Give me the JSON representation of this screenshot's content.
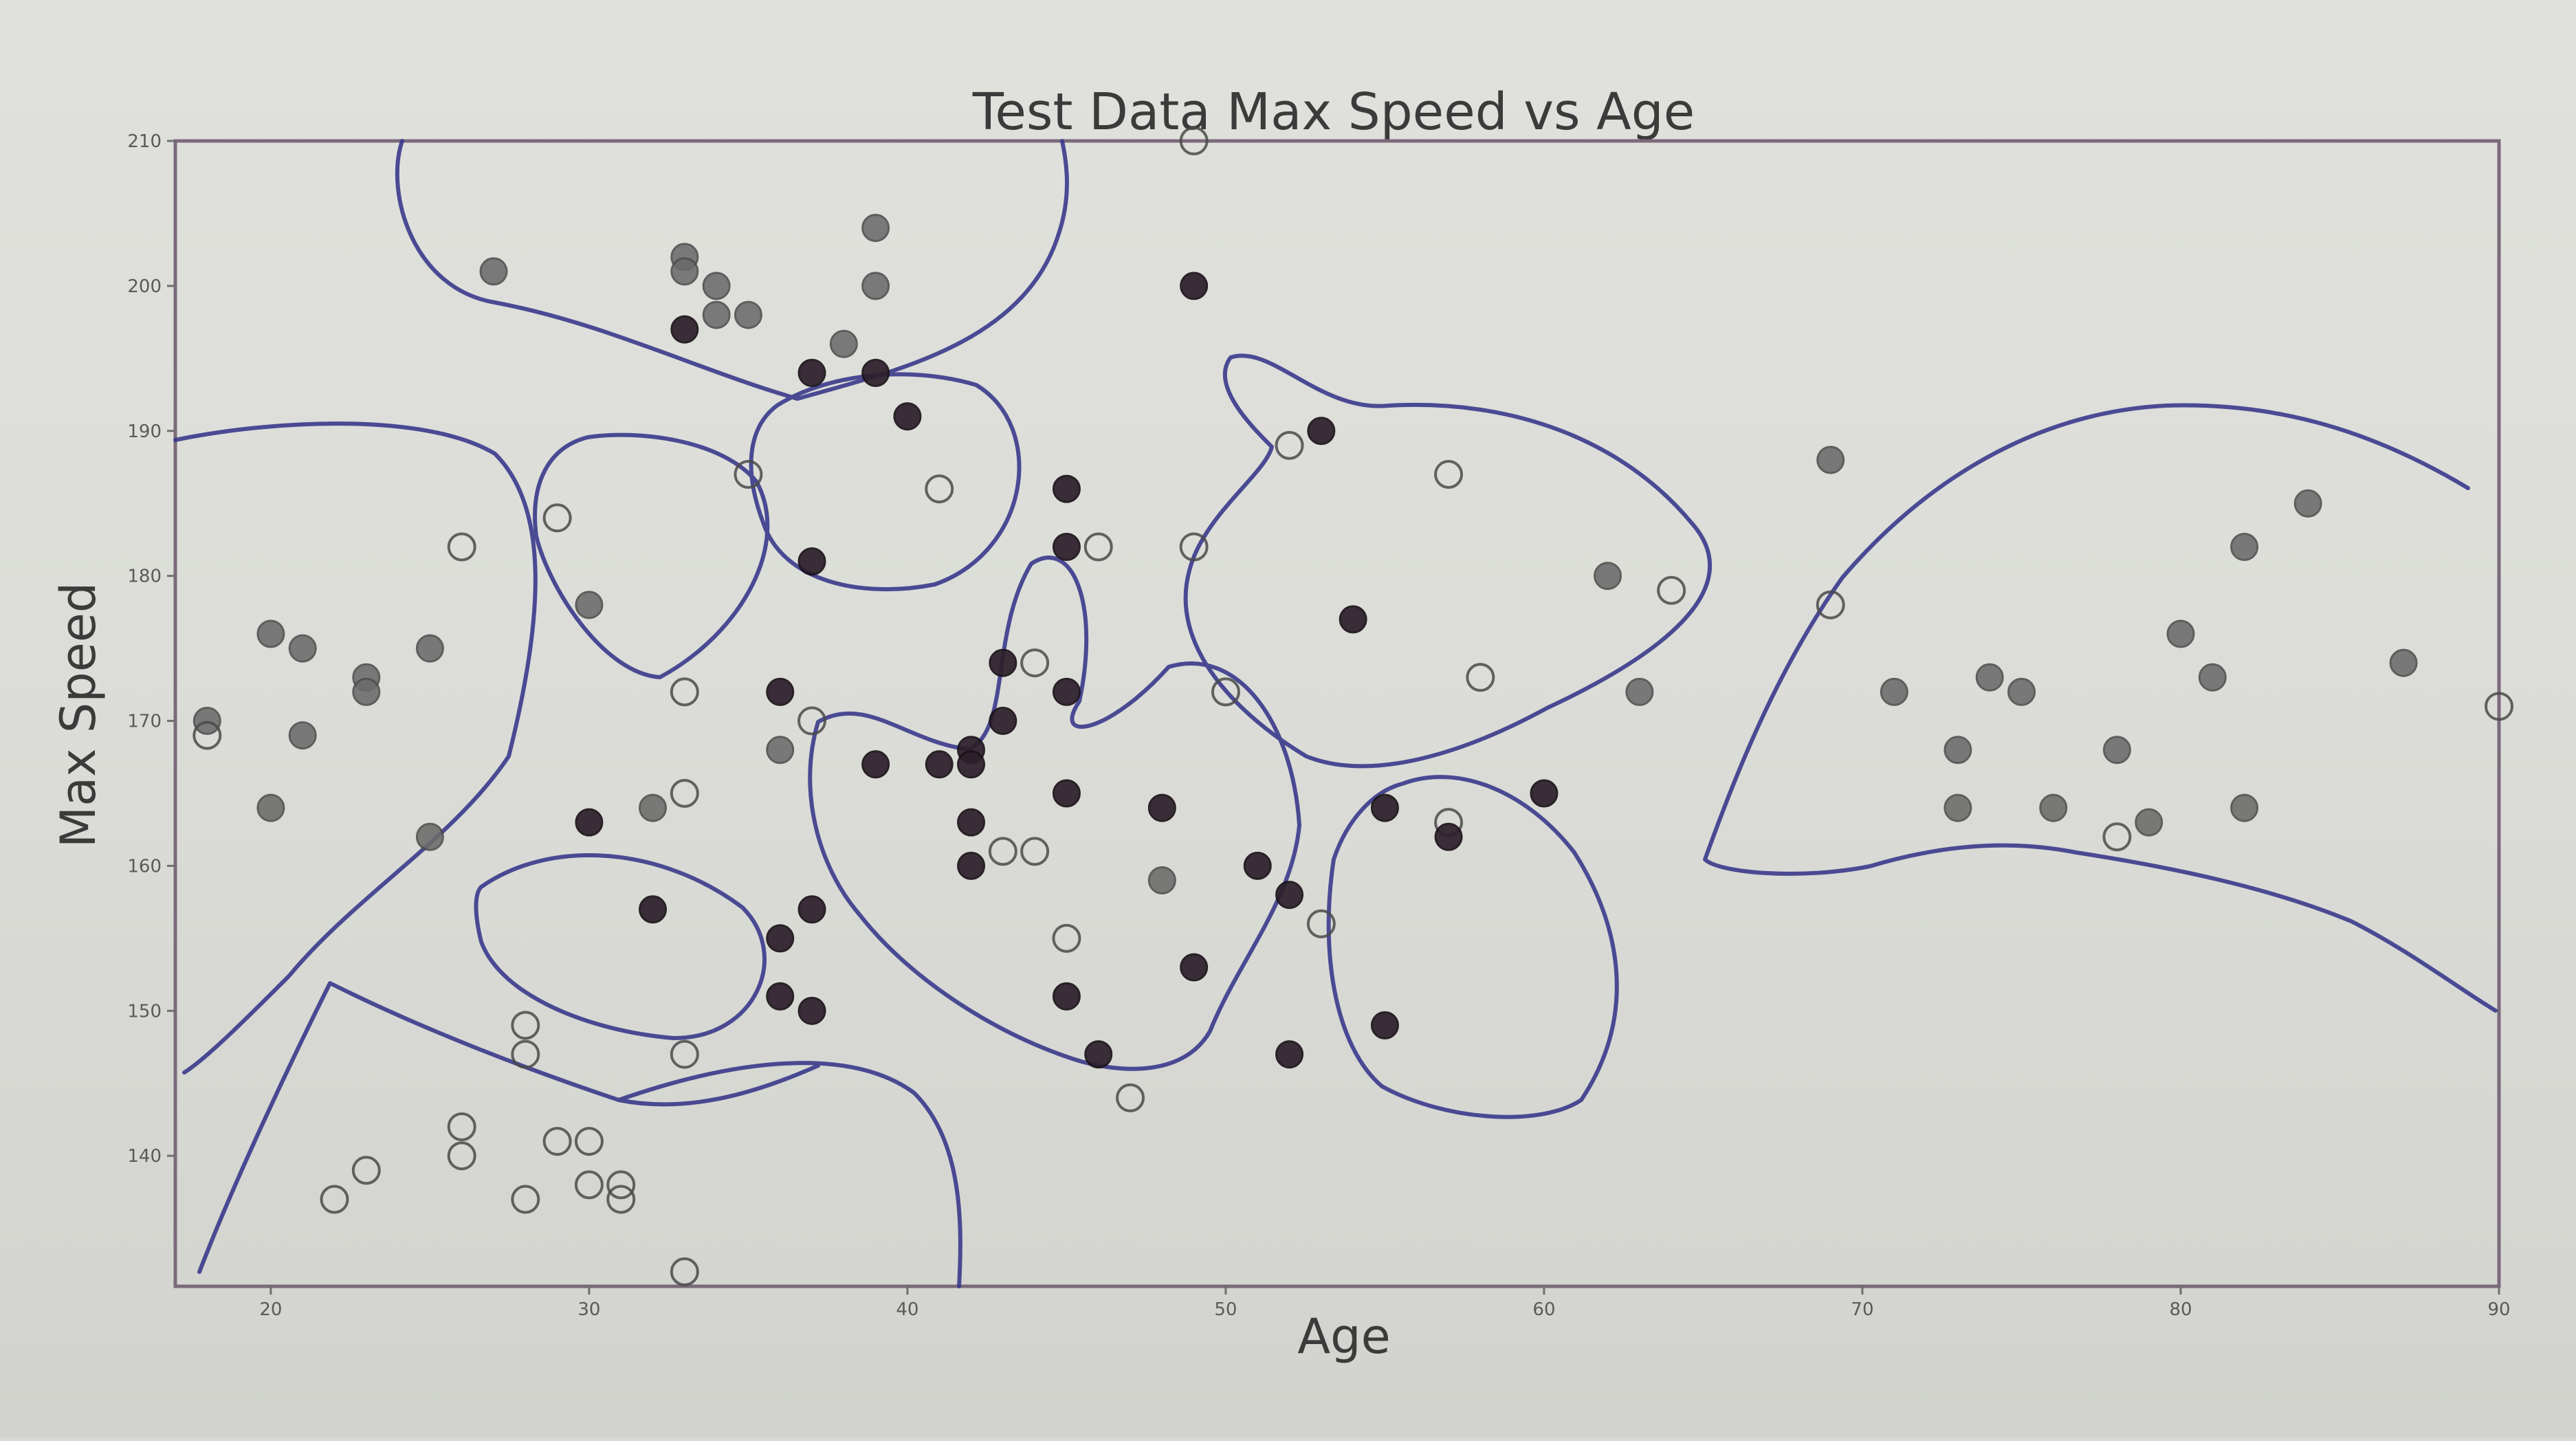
{
  "chart_data": {
    "type": "scatter",
    "title": "Test Data Max Speed vs Age",
    "xlabel": "Age",
    "ylabel": "Max Speed",
    "xlim": [
      17,
      90
    ],
    "ylim": [
      131,
      210
    ],
    "x_ticks": [
      20,
      30,
      40,
      50,
      60,
      70,
      80,
      90
    ],
    "y_ticks": [
      140,
      150,
      160,
      170,
      180,
      190,
      200,
      210
    ],
    "grid": false,
    "legend": "none",
    "annotations": "hand-drawn blue marker outlines around clusters of points",
    "colors": {
      "dark": "#2c1f2a",
      "gray": "#6b6b6b",
      "open_edge": "#4a4a4a",
      "drawing": "#3a3a8c"
    },
    "series": [
      {
        "marker": "filled-dark",
        "points": [
          [
            33,
            197
          ],
          [
            37,
            194
          ],
          [
            39,
            194
          ],
          [
            40,
            191
          ],
          [
            37,
            181
          ],
          [
            36,
            172
          ],
          [
            39,
            167
          ],
          [
            41,
            167
          ],
          [
            42,
            168
          ],
          [
            42,
            167
          ],
          [
            42,
            163
          ],
          [
            42,
            160
          ],
          [
            43,
            174
          ],
          [
            43,
            170
          ],
          [
            45,
            186
          ],
          [
            45,
            182
          ],
          [
            45,
            172
          ],
          [
            45,
            165
          ],
          [
            46,
            147
          ],
          [
            45,
            151
          ],
          [
            48,
            164
          ],
          [
            49,
            153
          ],
          [
            49,
            200
          ],
          [
            51,
            160
          ],
          [
            52,
            158
          ],
          [
            52,
            147
          ],
          [
            53,
            190
          ],
          [
            54,
            177
          ],
          [
            55,
            164
          ],
          [
            55,
            149
          ],
          [
            57,
            162
          ],
          [
            60,
            165
          ],
          [
            30,
            163
          ],
          [
            32,
            157
          ],
          [
            36,
            155
          ],
          [
            37,
            157
          ],
          [
            36,
            151
          ],
          [
            37,
            150
          ]
        ]
      },
      {
        "marker": "filled-gray",
        "points": [
          [
            27,
            201
          ],
          [
            33,
            202
          ],
          [
            33,
            201
          ],
          [
            34,
            200
          ],
          [
            34,
            198
          ],
          [
            35,
            198
          ],
          [
            38,
            196
          ],
          [
            39,
            204
          ],
          [
            39,
            200
          ],
          [
            36,
            168
          ],
          [
            30,
            178
          ],
          [
            32,
            164
          ],
          [
            25,
            175
          ],
          [
            25,
            162
          ],
          [
            20,
            176
          ],
          [
            21,
            175
          ],
          [
            20,
            164
          ],
          [
            23,
            173
          ],
          [
            23,
            172
          ],
          [
            21,
            169
          ],
          [
            18,
            170
          ],
          [
            48,
            159
          ],
          [
            62,
            180
          ],
          [
            63,
            172
          ],
          [
            69,
            188
          ],
          [
            71,
            172
          ],
          [
            73,
            168
          ],
          [
            73,
            164
          ],
          [
            74,
            173
          ],
          [
            75,
            172
          ],
          [
            76,
            164
          ],
          [
            78,
            168
          ],
          [
            79,
            163
          ],
          [
            80,
            176
          ],
          [
            81,
            173
          ],
          [
            82,
            182
          ],
          [
            82,
            164
          ],
          [
            84,
            185
          ],
          [
            87,
            174
          ]
        ]
      },
      {
        "marker": "open",
        "points": [
          [
            49,
            210
          ],
          [
            41,
            186
          ],
          [
            35,
            187
          ],
          [
            29,
            184
          ],
          [
            26,
            182
          ],
          [
            37,
            170
          ],
          [
            33,
            172
          ],
          [
            33,
            165
          ],
          [
            18,
            169
          ],
          [
            28,
            149
          ],
          [
            28,
            147
          ],
          [
            33,
            147
          ],
          [
            26,
            142
          ],
          [
            26,
            140
          ],
          [
            29,
            141
          ],
          [
            30,
            141
          ],
          [
            30,
            138
          ],
          [
            31,
            138
          ],
          [
            31,
            137
          ],
          [
            28,
            137
          ],
          [
            22,
            137
          ],
          [
            23,
            139
          ],
          [
            33,
            132
          ],
          [
            44,
            174
          ],
          [
            43,
            161
          ],
          [
            44,
            161
          ],
          [
            46,
            182
          ],
          [
            45,
            155
          ],
          [
            47,
            144
          ],
          [
            49,
            182
          ],
          [
            50,
            172
          ],
          [
            52,
            189
          ],
          [
            53,
            156
          ],
          [
            57,
            163
          ],
          [
            57,
            187
          ],
          [
            58,
            173
          ],
          [
            64,
            179
          ],
          [
            69,
            178
          ],
          [
            78,
            162
          ],
          [
            90,
            171
          ]
        ]
      }
    ]
  }
}
